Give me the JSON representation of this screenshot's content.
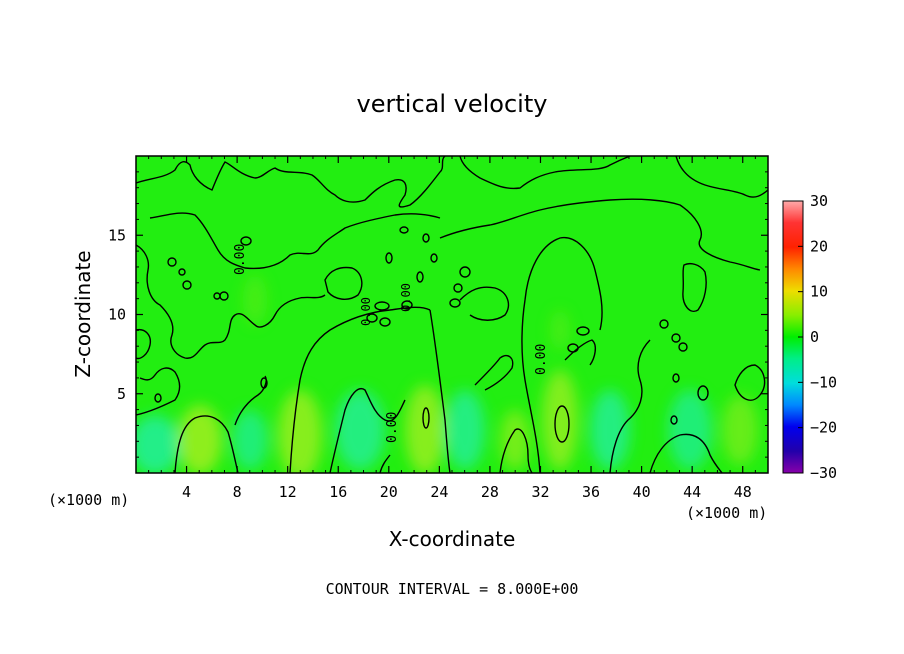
{
  "chart_data": {
    "type": "heatmap",
    "title": "vertical velocity",
    "xlabel": "X-coordinate",
    "ylabel": "Z-coordinate",
    "x_unit_left": "(×1000 m)",
    "x_unit_right": "(×1000 m)",
    "x_ticks": [
      "4",
      "8",
      "12",
      "16",
      "20",
      "24",
      "28",
      "32",
      "36",
      "40",
      "44",
      "48"
    ],
    "x_tick_values": [
      4,
      8,
      12,
      16,
      20,
      24,
      28,
      32,
      36,
      40,
      44,
      48
    ],
    "y_ticks": [
      "5",
      "10",
      "15"
    ],
    "y_tick_values": [
      5,
      10,
      15
    ],
    "xlim": [
      0,
      50
    ],
    "ylim": [
      0,
      20
    ],
    "colorbar": {
      "ticks": [
        "30",
        "20",
        "10",
        "0",
        "−10",
        "−20",
        "−30"
      ],
      "tick_values": [
        30,
        20,
        10,
        0,
        -10,
        -20,
        -30
      ],
      "range": [
        -30,
        30
      ]
    },
    "contour_interval_text": "CONTOUR INTERVAL = 8.000E+00",
    "contour_labels": [
      "0.00",
      "0.00",
      "0.00",
      "0.00",
      "0.00"
    ],
    "colors": {
      "background_field": "#22ee11",
      "updraft": "#b8ee22",
      "downdraft": "#22eeaa",
      "contour": "#000000"
    }
  }
}
